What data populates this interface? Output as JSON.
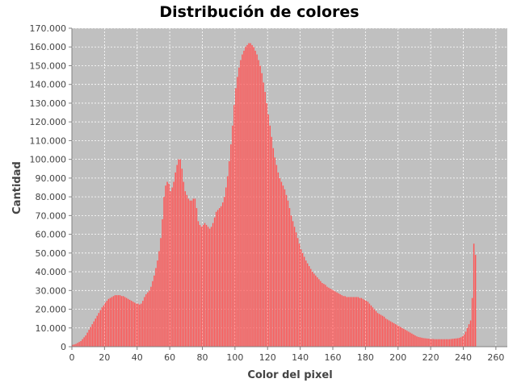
{
  "chart_data": {
    "type": "bar",
    "title": "Distribución de colores",
    "xlabel": "Color del pixel",
    "ylabel": "Cantidad",
    "xlim": [
      0,
      267
    ],
    "ylim": [
      0,
      170000
    ],
    "x_ticks": [
      0,
      20,
      40,
      60,
      80,
      100,
      120,
      140,
      160,
      180,
      200,
      220,
      240,
      260
    ],
    "x_tick_labels": [
      "0",
      "20",
      "40",
      "60",
      "80",
      "100",
      "120",
      "140",
      "160",
      "180",
      "200",
      "220",
      "240",
      "260"
    ],
    "y_ticks": [
      0,
      10000,
      20000,
      30000,
      40000,
      50000,
      60000,
      70000,
      80000,
      90000,
      100000,
      110000,
      120000,
      130000,
      140000,
      150000,
      160000,
      170000
    ],
    "y_tick_labels": [
      "0",
      "10.000",
      "20.000",
      "30.000",
      "40.000",
      "50.000",
      "60.000",
      "70.000",
      "80.000",
      "90.000",
      "100.000",
      "110.000",
      "120.000",
      "130.000",
      "140.000",
      "150.000",
      "160.000",
      "170.000"
    ],
    "grid": true,
    "plot_background": "#c0c0c0",
    "grid_color": "#ffffff",
    "bar_color": "#ff5555",
    "series": [
      {
        "values": [
          1000,
          1200,
          1500,
          2000,
          2500,
          3000,
          4000,
          5000,
          6000,
          7500,
          9000,
          10500,
          12000,
          13500,
          15000,
          16500,
          18000,
          19500,
          21000,
          22000,
          23500,
          24500,
          25500,
          26000,
          26500,
          27000,
          27500,
          27500,
          27500,
          27500,
          27000,
          27000,
          26500,
          26000,
          25500,
          25000,
          24500,
          24000,
          23500,
          23000,
          23000,
          22500,
          23000,
          24500,
          26500,
          28000,
          29000,
          30000,
          32000,
          35000,
          38000,
          42000,
          46000,
          51000,
          58000,
          68000,
          80000,
          86000,
          88000,
          87000,
          83000,
          85000,
          88000,
          93000,
          97000,
          100000,
          100000,
          95000,
          88000,
          83000,
          81000,
          79000,
          78000,
          78000,
          79000,
          79000,
          74000,
          67000,
          65000,
          64000,
          65000,
          66000,
          65000,
          64000,
          63000,
          64000,
          66000,
          69000,
          72000,
          73000,
          74000,
          75000,
          77000,
          80000,
          85000,
          91000,
          99000,
          108000,
          118000,
          129000,
          138000,
          144000,
          149000,
          153000,
          156000,
          158000,
          160000,
          161000,
          162000,
          162000,
          161000,
          160000,
          158000,
          156000,
          153000,
          150000,
          146000,
          141000,
          136000,
          130000,
          124000,
          118000,
          112000,
          106000,
          101000,
          97000,
          93000,
          90000,
          88000,
          86000,
          84000,
          81000,
          78000,
          74000,
          70000,
          67000,
          64000,
          61000,
          58000,
          55000,
          52000,
          50000,
          48000,
          46000,
          44500,
          43000,
          41500,
          40000,
          39000,
          38000,
          37000,
          36000,
          35000,
          34000,
          33500,
          33000,
          32000,
          31500,
          31000,
          30500,
          30000,
          29500,
          29000,
          28500,
          28000,
          27500,
          27000,
          27000,
          26500,
          26500,
          26500,
          26500,
          26500,
          26500,
          26500,
          26500,
          26000,
          26000,
          25500,
          25000,
          24500,
          24000,
          23000,
          22000,
          21000,
          20000,
          19000,
          18000,
          17500,
          17000,
          16500,
          16000,
          15000,
          14500,
          14000,
          13500,
          13000,
          12500,
          12000,
          11500,
          11000,
          10500,
          10000,
          9500,
          9000,
          8500,
          8000,
          7500,
          7000,
          6500,
          6000,
          5500,
          5200,
          5000,
          4800,
          4600,
          4500,
          4400,
          4300,
          4200,
          4100,
          4100,
          4000,
          4000,
          4000,
          4000,
          4000,
          4000,
          4000,
          4000,
          4000,
          4000,
          4100,
          4200,
          4300,
          4400,
          4500,
          4700,
          5000,
          5500,
          6500,
          8000,
          10000,
          12000,
          14000,
          26000,
          55000,
          49000
        ]
      }
    ]
  }
}
